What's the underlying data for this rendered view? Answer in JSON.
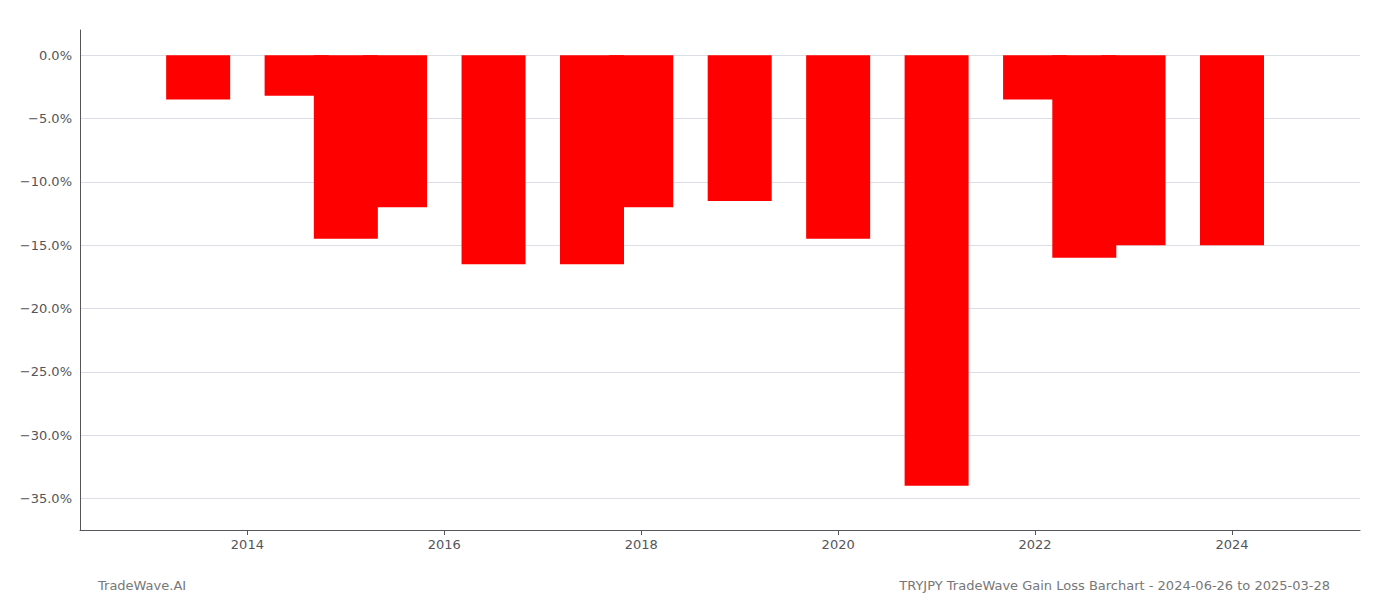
{
  "chart_data": {
    "type": "bar",
    "x": [
      2013.5,
      2014.5,
      2015.0,
      2015.5,
      2016.5,
      2017.5,
      2018.0,
      2019.0,
      2020.0,
      2021.0,
      2022.0,
      2022.5,
      2023.0,
      2024.0
    ],
    "values": [
      -3.5,
      -3.2,
      -14.5,
      -12.0,
      -16.5,
      -16.5,
      -12.0,
      -11.5,
      -14.5,
      -34.0,
      -3.5,
      -16.0,
      -15.0,
      -15.0
    ],
    "color": "#ff0000",
    "xlim": [
      2012.3,
      2025.3
    ],
    "xticks": [
      2014,
      2016,
      2018,
      2020,
      2022,
      2024
    ],
    "ylim": [
      -37.5,
      2.0
    ],
    "yticks": [
      {
        "value": 0.0,
        "label": "0.0%"
      },
      {
        "value": -5.0,
        "label": "−5.0%"
      },
      {
        "value": -10.0,
        "label": "−10.0%"
      },
      {
        "value": -15.0,
        "label": "−15.0%"
      },
      {
        "value": -20.0,
        "label": "−20.0%"
      },
      {
        "value": -25.0,
        "label": "−25.0%"
      },
      {
        "value": -30.0,
        "label": "−30.0%"
      },
      {
        "value": -35.0,
        "label": "−35.0%"
      }
    ],
    "grid": true,
    "annotations": [
      "TradeWave.AI",
      "TRYJPY TradeWave Gain Loss Barchart - 2024-06-26 to 2025-03-28"
    ]
  }
}
